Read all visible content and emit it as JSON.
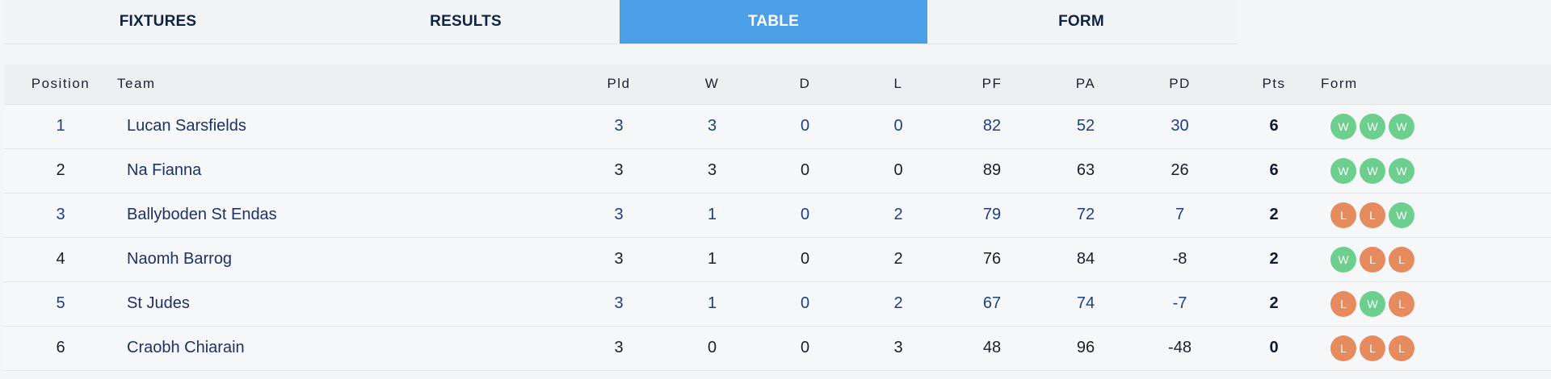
{
  "tabs": [
    {
      "label": "FIXTURES",
      "active": false
    },
    {
      "label": "RESULTS",
      "active": false
    },
    {
      "label": "TABLE",
      "active": true
    },
    {
      "label": "FORM",
      "active": false
    }
  ],
  "colors": {
    "active_tab": "#4a9fe6",
    "win": "#6ccf8e",
    "loss": "#e58b5e"
  },
  "table": {
    "headers": {
      "position": "Position",
      "team": "Team",
      "pld": "Pld",
      "w": "W",
      "d": "D",
      "l": "L",
      "pf": "PF",
      "pa": "PA",
      "pd": "PD",
      "pts": "Pts",
      "form": "Form"
    },
    "rows": [
      {
        "position": "1",
        "team": "Lucan Sarsfields",
        "pld": "3",
        "w": "3",
        "d": "0",
        "l": "0",
        "pf": "82",
        "pa": "52",
        "pd": "30",
        "pts": "6",
        "form": [
          "W",
          "W",
          "W"
        ]
      },
      {
        "position": "2",
        "team": "Na Fianna",
        "pld": "3",
        "w": "3",
        "d": "0",
        "l": "0",
        "pf": "89",
        "pa": "63",
        "pd": "26",
        "pts": "6",
        "form": [
          "W",
          "W",
          "W"
        ]
      },
      {
        "position": "3",
        "team": "Ballyboden St Endas",
        "pld": "3",
        "w": "1",
        "d": "0",
        "l": "2",
        "pf": "79",
        "pa": "72",
        "pd": "7",
        "pts": "2",
        "form": [
          "L",
          "L",
          "W"
        ]
      },
      {
        "position": "4",
        "team": "Naomh Barrog",
        "pld": "3",
        "w": "1",
        "d": "0",
        "l": "2",
        "pf": "76",
        "pa": "84",
        "pd": "-8",
        "pts": "2",
        "form": [
          "W",
          "L",
          "L"
        ]
      },
      {
        "position": "5",
        "team": "St Judes",
        "pld": "3",
        "w": "1",
        "d": "0",
        "l": "2",
        "pf": "67",
        "pa": "74",
        "pd": "-7",
        "pts": "2",
        "form": [
          "L",
          "W",
          "L"
        ]
      },
      {
        "position": "6",
        "team": "Craobh Chiarain",
        "pld": "3",
        "w": "0",
        "d": "0",
        "l": "3",
        "pf": "48",
        "pa": "96",
        "pd": "-48",
        "pts": "0",
        "form": [
          "L",
          "L",
          "L"
        ]
      }
    ]
  }
}
